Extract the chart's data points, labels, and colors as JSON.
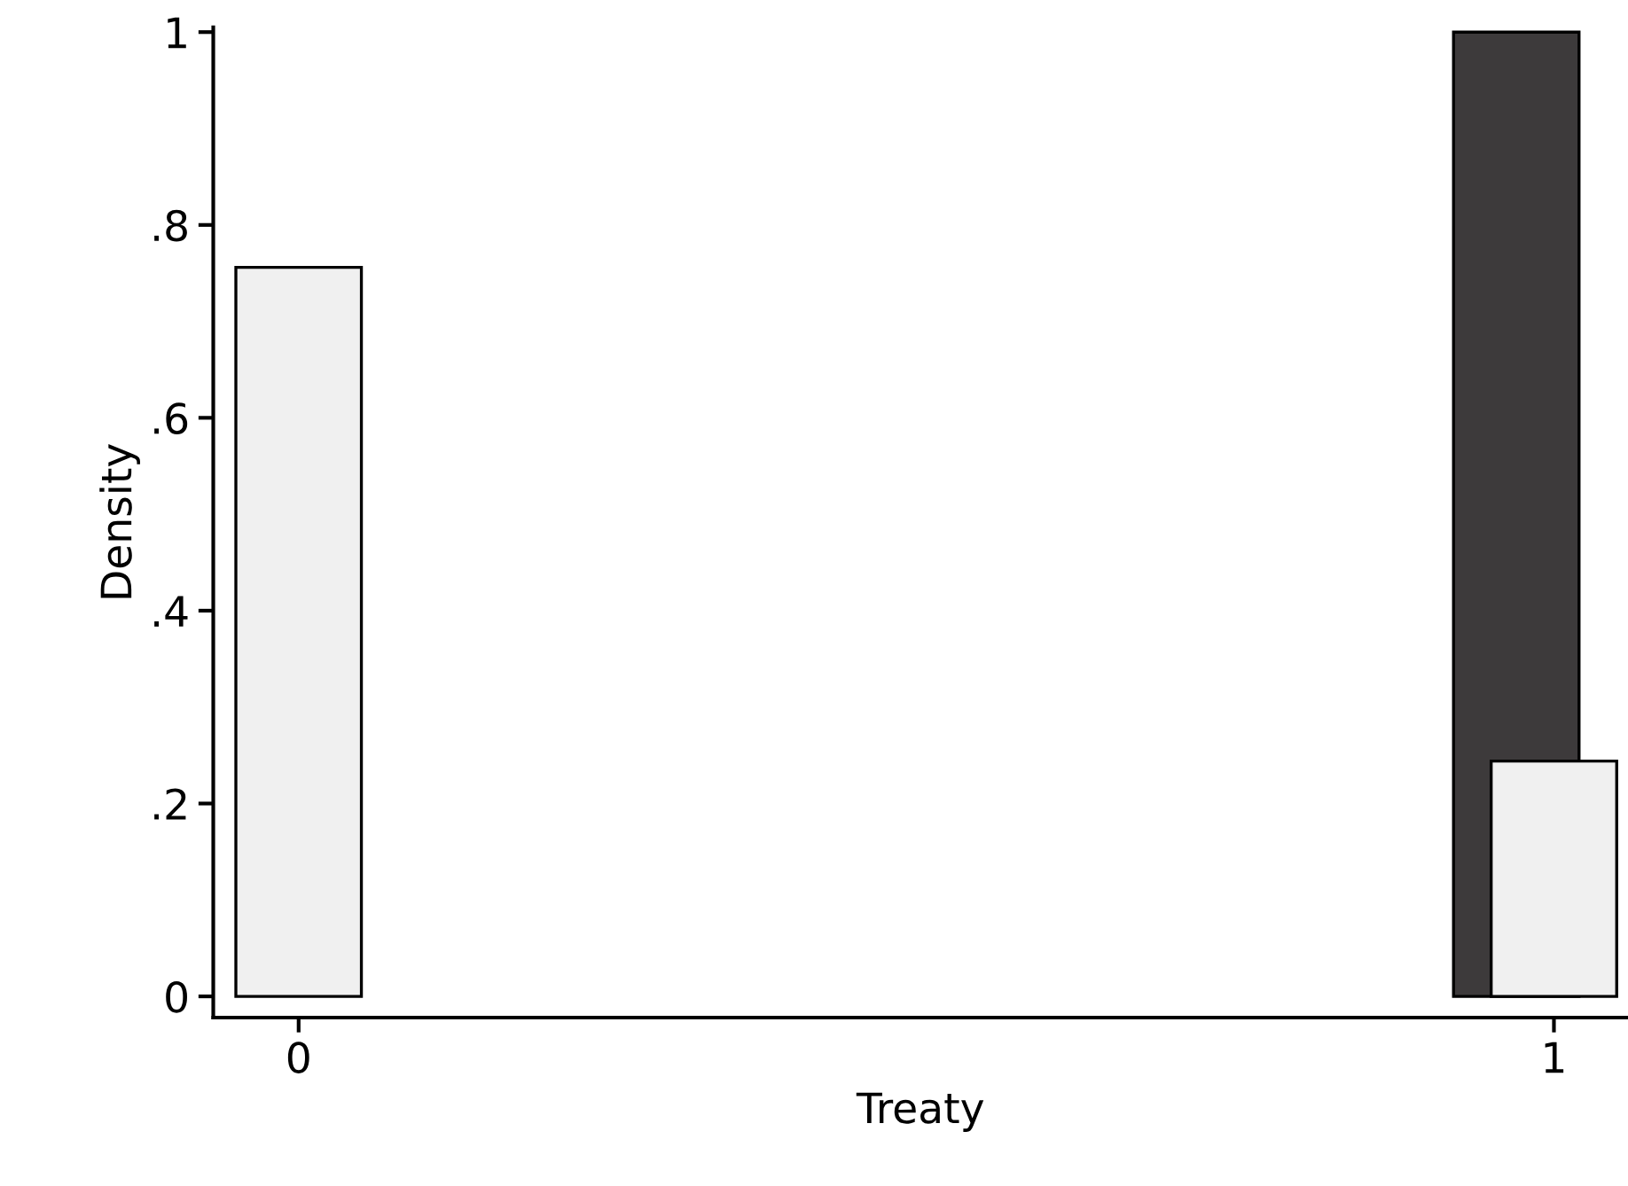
{
  "chart_data": {
    "type": "bar",
    "xlabel": "Treaty",
    "ylabel": "Density",
    "categories": [
      "0",
      "1"
    ],
    "series": [
      {
        "color": "#3d3a3b",
        "values": [
          null,
          1.0
        ]
      },
      {
        "color": "#f0f0f0",
        "values": [
          0.756,
          0.244
        ]
      }
    ],
    "ylim": [
      -0.022,
      1.005
    ],
    "yticks": [
      0,
      {
        "value": 0.2,
        "label": ".2"
      },
      {
        "value": 0.4,
        "label": ".4"
      },
      {
        "value": 0.6,
        "label": ".6"
      },
      {
        "value": 0.8,
        "label": ".8"
      },
      1
    ],
    "grid": false,
    "legend": false
  }
}
